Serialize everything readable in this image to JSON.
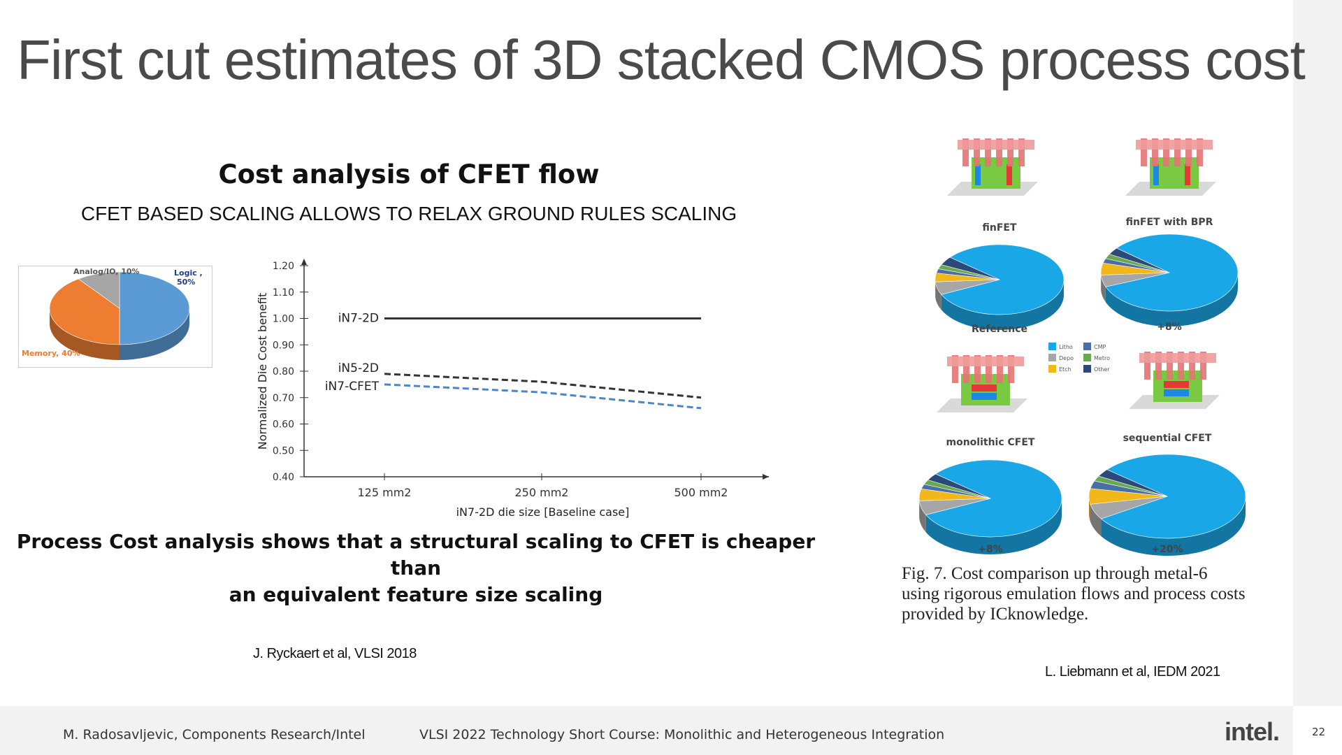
{
  "slide": {
    "title": "First cut estimates of 3D stacked CMOS process cost"
  },
  "left_panel": {
    "heading": "Cost analysis of CFET flow",
    "subheading": "CFET BASED SCALING ALLOWS TO RELAX GROUND RULES SCALING",
    "conclusion_line1": "Process Cost analysis shows that a structural scaling to CFET is cheaper than",
    "conclusion_line2": "an equivalent feature size scaling",
    "citation": "J. Ryckaert et al, VLSI 2018"
  },
  "chart_data": [
    {
      "type": "pie",
      "labels": [
        "Logic , 50%",
        "Memory, 40%",
        "Analog/IO, 10%"
      ],
      "values": [
        50,
        40,
        10
      ],
      "colors": [
        "#5b9bd5",
        "#ed7d31",
        "#a5a5a5"
      ]
    },
    {
      "type": "line",
      "title": "",
      "xlabel": "iN7-2D die size [Baseline case]",
      "ylabel": "Normalized Die Cost benefit",
      "categories": [
        "125 mm2",
        "250 mm2",
        "500 mm2"
      ],
      "ylim": [
        0.4,
        1.2
      ],
      "yticks": [
        "0.40",
        "0.50",
        "0.60",
        "0.70",
        "0.80",
        "0.90",
        "1.00",
        "1.10",
        "1.20"
      ],
      "series": [
        {
          "name": "iN7-2D",
          "values": [
            1.0,
            1.0,
            1.0
          ],
          "color": "#333333",
          "style": "solid"
        },
        {
          "name": "iN5-2D",
          "values": [
            0.79,
            0.76,
            0.7
          ],
          "color": "#333333",
          "style": "dashed"
        },
        {
          "name": "iN7-CFET",
          "values": [
            0.75,
            0.72,
            0.66
          ],
          "color": "#4a86c8",
          "style": "dashed"
        }
      ]
    },
    {
      "type": "pie",
      "label": "finFET",
      "caption": "Reference",
      "values": [
        82,
        6,
        4,
        2,
        2,
        4
      ],
      "colors": [
        "#1aa7e8",
        "#a6a6a6",
        "#f2b81b",
        "#4a6fa5",
        "#6aa84f",
        "#2b4a7a"
      ]
    },
    {
      "type": "pie",
      "label": "finFET with BPR",
      "caption": "+8%",
      "values": [
        83,
        5,
        5,
        2,
        2,
        3
      ],
      "colors": [
        "#1aa7e8",
        "#a6a6a6",
        "#f2b81b",
        "#4a6fa5",
        "#6aa84f",
        "#2b4a7a"
      ]
    },
    {
      "type": "pie",
      "label": "monolithic CFET",
      "caption": "+8%",
      "values": [
        82,
        6,
        5,
        2,
        2,
        3
      ],
      "colors": [
        "#1aa7e8",
        "#a6a6a6",
        "#f2b81b",
        "#4a6fa5",
        "#6aa84f",
        "#2b4a7a"
      ]
    },
    {
      "type": "pie",
      "label": "sequential CFET",
      "caption": "+20%",
      "values": [
        80,
        6,
        6,
        3,
        2,
        3
      ],
      "colors": [
        "#1aa7e8",
        "#a6a6a6",
        "#f2b81b",
        "#4a6fa5",
        "#6aa84f",
        "#2b4a7a"
      ]
    }
  ],
  "figure_legend": [
    {
      "label": "Litho",
      "color": "#1aa7e8"
    },
    {
      "label": "CMP",
      "color": "#4a6fa5"
    },
    {
      "label": "Depo",
      "color": "#a6a6a6"
    },
    {
      "label": "Metro",
      "color": "#6aa84f"
    },
    {
      "label": "Etch",
      "color": "#f2b81b"
    },
    {
      "label": "Other",
      "color": "#2b4a7a"
    }
  ],
  "right_panel": {
    "caption_line1": "Fig. 7. Cost comparison up through metal-6",
    "caption_line2": "using rigorous emulation flows and process costs",
    "caption_line3": "provided by ICknowledge.",
    "citation": "L. Liebmann et al, IEDM 2021"
  },
  "footer": {
    "author": "M. Radosavljevic, Components Research/Intel",
    "course": "VLSI 2022 Technology Short Course: Monolithic and Heterogeneous Integration",
    "logo": "intel.",
    "page": "22"
  }
}
